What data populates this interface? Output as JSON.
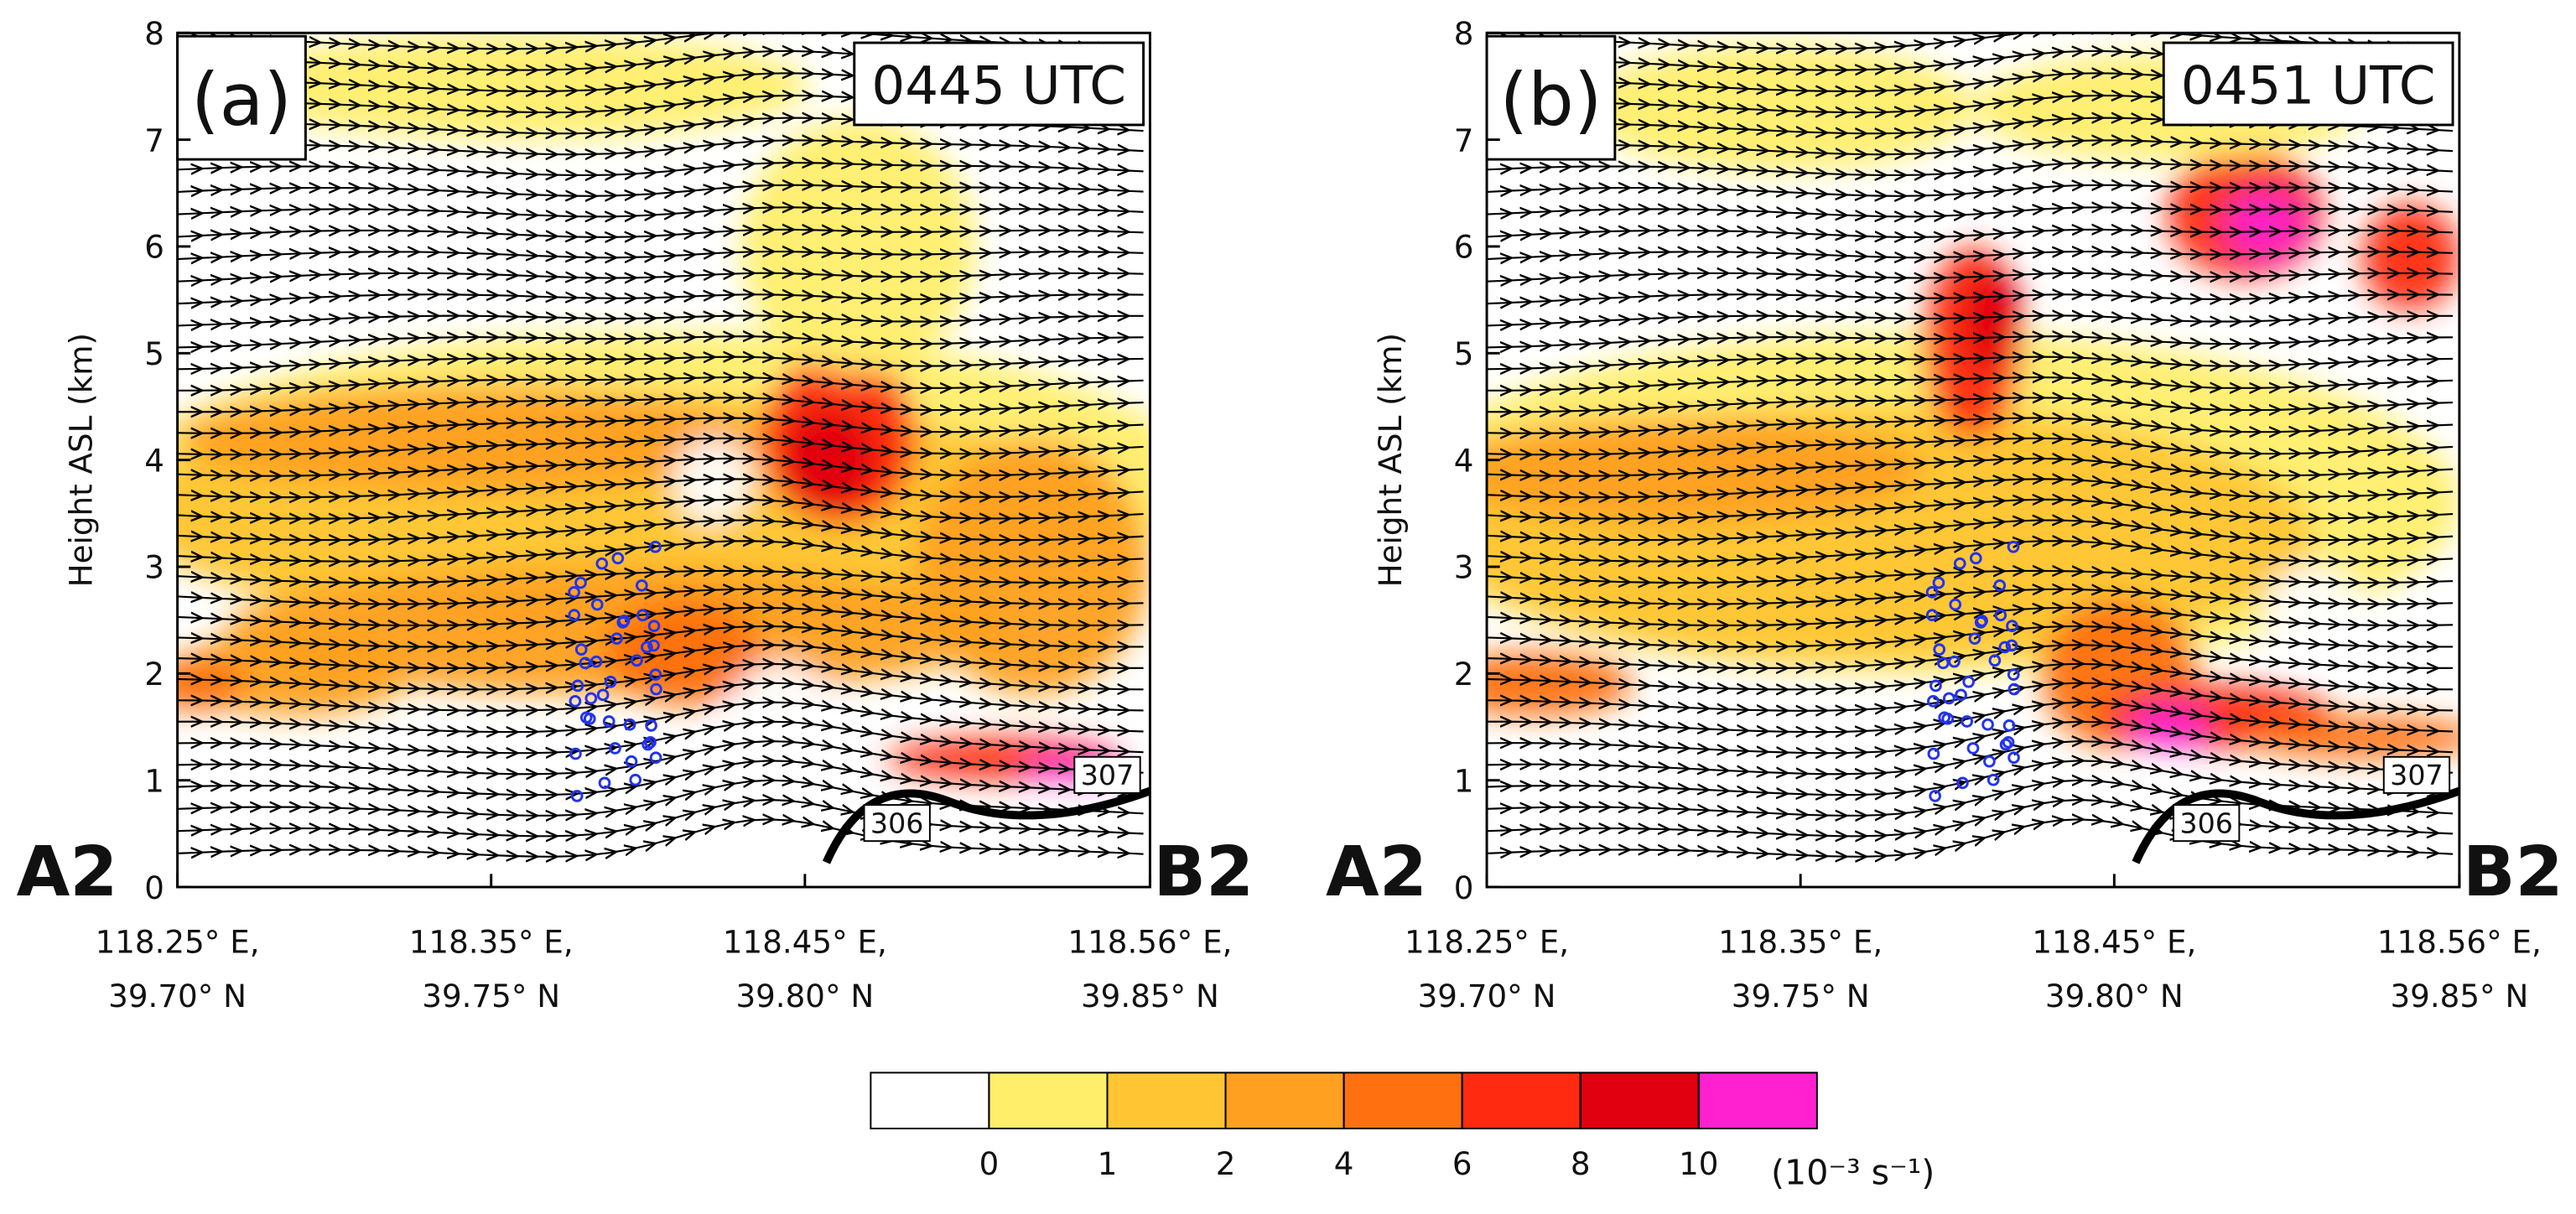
{
  "chart_data": [
    {
      "type": "contour",
      "panel_label": "(a)",
      "time": "0445 UTC",
      "ylabel": "Height ASL (km)",
      "ylim": [
        0,
        8
      ],
      "yticks": [
        0,
        1,
        2,
        3,
        4,
        5,
        6,
        7,
        8
      ],
      "xlim": [
        118.25,
        118.56
      ],
      "xticks": [
        {
          "value": 118.25,
          "label": [
            "118.25° E,",
            "39.70° N"
          ]
        },
        {
          "value": 118.35,
          "label": [
            "118.35° E,",
            "39.75° N"
          ]
        },
        {
          "value": 118.45,
          "label": [
            "118.45° E,",
            "39.80° N"
          ]
        },
        {
          "value": 118.56,
          "label": [
            "118.56° E,",
            "39.85° N"
          ]
        }
      ],
      "start_label": "A2",
      "end_label": "B2",
      "contour_labels": [
        "306",
        "307"
      ]
    },
    {
      "type": "contour",
      "panel_label": "(b)",
      "time": "0451 UTC",
      "ylabel": "Height ASL (km)",
      "ylim": [
        0,
        8
      ],
      "yticks": [
        0,
        1,
        2,
        3,
        4,
        5,
        6,
        7,
        8
      ],
      "xlim": [
        118.25,
        118.56
      ],
      "xticks": [
        {
          "value": 118.25,
          "label": [
            "118.25° E,",
            "39.70° N"
          ]
        },
        {
          "value": 118.35,
          "label": [
            "118.35° E,",
            "39.75° N"
          ]
        },
        {
          "value": 118.45,
          "label": [
            "118.45° E,",
            "39.80° N"
          ]
        },
        {
          "value": 118.56,
          "label": [
            "118.56° E,",
            "39.85° N"
          ]
        }
      ],
      "start_label": "A2",
      "end_label": "B2",
      "contour_labels": [
        "306",
        "307"
      ]
    }
  ],
  "colorbar": {
    "colors": [
      "#ffffff",
      "#ffee6a",
      "#ffc532",
      "#ffa020",
      "#ff7010",
      "#ff2a10",
      "#e00010",
      "#ff20d0"
    ],
    "ticks": [
      0,
      1,
      2,
      4,
      6,
      8,
      10
    ],
    "unit": "(10⁻³ s⁻¹)"
  }
}
